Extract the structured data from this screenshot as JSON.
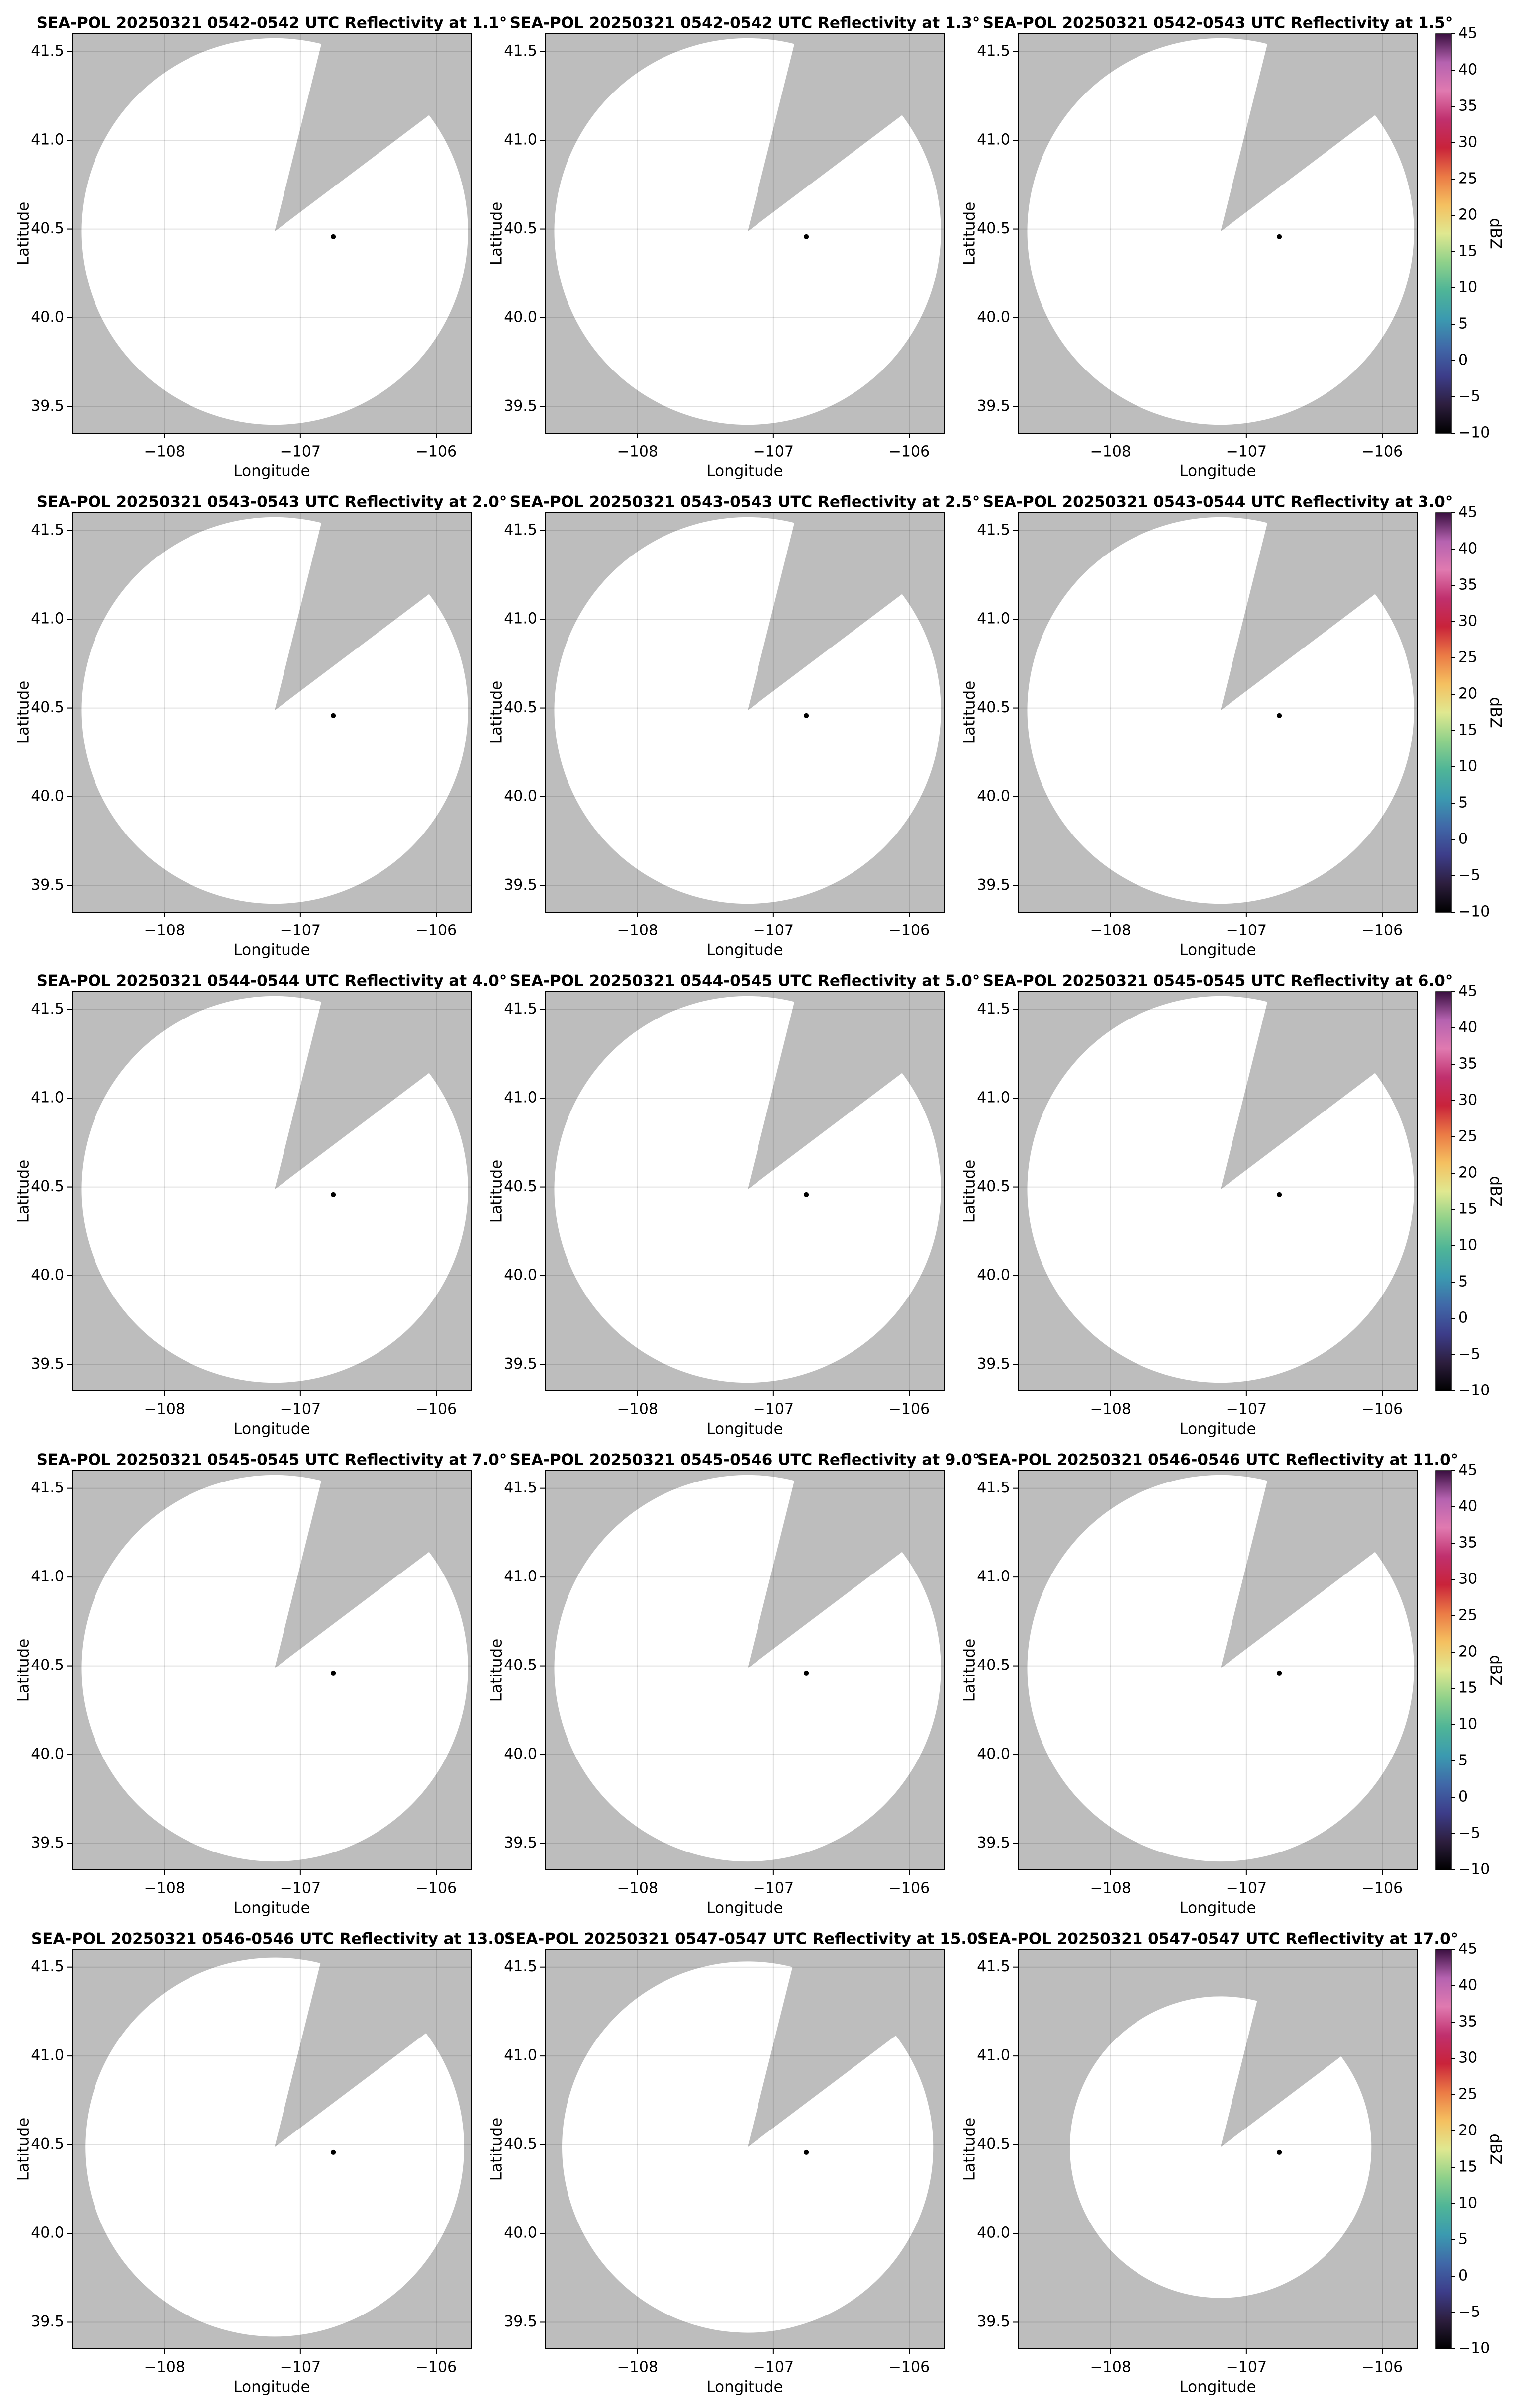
{
  "chart_data": [
    {
      "type": "radar",
      "title": "SEA-POL 20250321 0542-0542 UTC Reflectivity at 1.1°",
      "xlabel": "Longitude",
      "ylabel": "Latitude",
      "xlim": [
        -108.68,
        -105.74
      ],
      "ylim": [
        39.35,
        41.6
      ],
      "xticks": [
        {
          "value": -108,
          "label": "−108"
        },
        {
          "value": -107,
          "label": "−107"
        },
        {
          "value": -106,
          "label": "−106"
        }
      ],
      "yticks": [
        39.5,
        {
          "value": 40,
          "label": "40.0"
        },
        40.5,
        {
          "value": 41,
          "label": "41.0"
        },
        41.5
      ],
      "grid": true,
      "background_color": "#bdbdbd",
      "coverage_color": "#ffffff"
    },
    {
      "type": "radar",
      "title": "SEA-POL 20250321 0542-0542 UTC Reflectivity at 1.3°",
      "xlabel": "Longitude",
      "ylabel": "Latitude",
      "xlim": [
        -108.68,
        -105.74
      ],
      "ylim": [
        39.35,
        41.6
      ],
      "xticks": [
        {
          "value": -108,
          "label": "−108"
        },
        {
          "value": -107,
          "label": "−107"
        },
        {
          "value": -106,
          "label": "−106"
        }
      ],
      "yticks": [
        39.5,
        {
          "value": 40,
          "label": "40.0"
        },
        40.5,
        {
          "value": 41,
          "label": "41.0"
        },
        41.5
      ],
      "grid": true,
      "background_color": "#bdbdbd",
      "coverage_color": "#ffffff"
    },
    {
      "type": "radar",
      "title": "SEA-POL 20250321 0542-0543 UTC Reflectivity at 1.5°",
      "xlabel": "Longitude",
      "ylabel": "Latitude",
      "xlim": [
        -108.68,
        -105.74
      ],
      "ylim": [
        39.35,
        41.6
      ],
      "xticks": [
        {
          "value": -108,
          "label": "−108"
        },
        {
          "value": -107,
          "label": "−107"
        },
        {
          "value": -106,
          "label": "−106"
        }
      ],
      "yticks": [
        39.5,
        {
          "value": 40,
          "label": "40.0"
        },
        40.5,
        {
          "value": 41,
          "label": "41.0"
        },
        41.5
      ],
      "grid": true,
      "background_color": "#bdbdbd",
      "coverage_color": "#ffffff",
      "colorbar": {
        "label": "dBZ",
        "lim": [
          -10,
          45
        ],
        "ticks": [
          {
            "value": -10,
            "label": "−10"
          },
          {
            "value": -5,
            "label": "−5"
          },
          0,
          5,
          10,
          15,
          20,
          25,
          30,
          35,
          40,
          45
        ],
        "colors": [
          "#000000",
          "#2d1e3e",
          "#3d3d8a",
          "#4068a8",
          "#3b9ab0",
          "#4fb597",
          "#8fd18a",
          "#e0e890",
          "#f5c060",
          "#eb7a45",
          "#c9233a",
          "#c0306e",
          "#e07ab0",
          "#b562b0",
          "#3a0f40"
        ]
      }
    },
    {
      "type": "radar",
      "title": "SEA-POL 20250321 0543-0543 UTC Reflectivity at 2.0°",
      "xlabel": "Longitude",
      "ylabel": "Latitude",
      "xlim": [
        -108.68,
        -105.74
      ],
      "ylim": [
        39.35,
        41.6
      ],
      "xticks": [
        {
          "value": -108,
          "label": "−108"
        },
        {
          "value": -107,
          "label": "−107"
        },
        {
          "value": -106,
          "label": "−106"
        }
      ],
      "yticks": [
        39.5,
        {
          "value": 40,
          "label": "40.0"
        },
        40.5,
        {
          "value": 41,
          "label": "41.0"
        },
        41.5
      ],
      "grid": true,
      "background_color": "#bdbdbd",
      "coverage_color": "#ffffff"
    },
    {
      "type": "radar",
      "title": "SEA-POL 20250321 0543-0543 UTC Reflectivity at 2.5°",
      "xlabel": "Longitude",
      "ylabel": "Latitude",
      "xlim": [
        -108.68,
        -105.74
      ],
      "ylim": [
        39.35,
        41.6
      ],
      "xticks": [
        {
          "value": -108,
          "label": "−108"
        },
        {
          "value": -107,
          "label": "−107"
        },
        {
          "value": -106,
          "label": "−106"
        }
      ],
      "yticks": [
        39.5,
        {
          "value": 40,
          "label": "40.0"
        },
        40.5,
        {
          "value": 41,
          "label": "41.0"
        },
        41.5
      ],
      "grid": true,
      "background_color": "#bdbdbd",
      "coverage_color": "#ffffff"
    },
    {
      "type": "radar",
      "title": "SEA-POL 20250321 0543-0544 UTC Reflectivity at 3.0°",
      "xlabel": "Longitude",
      "ylabel": "Latitude",
      "xlim": [
        -108.68,
        -105.74
      ],
      "ylim": [
        39.35,
        41.6
      ],
      "xticks": [
        {
          "value": -108,
          "label": "−108"
        },
        {
          "value": -107,
          "label": "−107"
        },
        {
          "value": -106,
          "label": "−106"
        }
      ],
      "yticks": [
        39.5,
        {
          "value": 40,
          "label": "40.0"
        },
        40.5,
        {
          "value": 41,
          "label": "41.0"
        },
        41.5
      ],
      "grid": true,
      "background_color": "#bdbdbd",
      "coverage_color": "#ffffff",
      "colorbar": {
        "label": "dBZ",
        "lim": [
          -10,
          45
        ],
        "ticks": [
          {
            "value": -10,
            "label": "−10"
          },
          {
            "value": -5,
            "label": "−5"
          },
          0,
          5,
          10,
          15,
          20,
          25,
          30,
          35,
          40,
          45
        ],
        "colors": [
          "#000000",
          "#2d1e3e",
          "#3d3d8a",
          "#4068a8",
          "#3b9ab0",
          "#4fb597",
          "#8fd18a",
          "#e0e890",
          "#f5c060",
          "#eb7a45",
          "#c9233a",
          "#c0306e",
          "#e07ab0",
          "#b562b0",
          "#3a0f40"
        ]
      }
    },
    {
      "type": "radar",
      "title": "SEA-POL 20250321 0544-0544 UTC Reflectivity at 4.0°",
      "xlabel": "Longitude",
      "ylabel": "Latitude",
      "xlim": [
        -108.68,
        -105.74
      ],
      "ylim": [
        39.35,
        41.6
      ],
      "xticks": [
        {
          "value": -108,
          "label": "−108"
        },
        {
          "value": -107,
          "label": "−107"
        },
        {
          "value": -106,
          "label": "−106"
        }
      ],
      "yticks": [
        39.5,
        {
          "value": 40,
          "label": "40.0"
        },
        40.5,
        {
          "value": 41,
          "label": "41.0"
        },
        41.5
      ],
      "grid": true,
      "background_color": "#bdbdbd",
      "coverage_color": "#ffffff"
    },
    {
      "type": "radar",
      "title": "SEA-POL 20250321 0544-0545 UTC Reflectivity at 5.0°",
      "xlabel": "Longitude",
      "ylabel": "Latitude",
      "xlim": [
        -108.68,
        -105.74
      ],
      "ylim": [
        39.35,
        41.6
      ],
      "xticks": [
        {
          "value": -108,
          "label": "−108"
        },
        {
          "value": -107,
          "label": "−107"
        },
        {
          "value": -106,
          "label": "−106"
        }
      ],
      "yticks": [
        39.5,
        {
          "value": 40,
          "label": "40.0"
        },
        40.5,
        {
          "value": 41,
          "label": "41.0"
        },
        41.5
      ],
      "grid": true,
      "background_color": "#bdbdbd",
      "coverage_color": "#ffffff"
    },
    {
      "type": "radar",
      "title": "SEA-POL 20250321 0545-0545 UTC Reflectivity at 6.0°",
      "xlabel": "Longitude",
      "ylabel": "Latitude",
      "xlim": [
        -108.68,
        -105.74
      ],
      "ylim": [
        39.35,
        41.6
      ],
      "xticks": [
        {
          "value": -108,
          "label": "−108"
        },
        {
          "value": -107,
          "label": "−107"
        },
        {
          "value": -106,
          "label": "−106"
        }
      ],
      "yticks": [
        39.5,
        {
          "value": 40,
          "label": "40.0"
        },
        40.5,
        {
          "value": 41,
          "label": "41.0"
        },
        41.5
      ],
      "grid": true,
      "background_color": "#bdbdbd",
      "coverage_color": "#ffffff",
      "colorbar": {
        "label": "dBZ",
        "lim": [
          -10,
          45
        ],
        "ticks": [
          {
            "value": -10,
            "label": "−10"
          },
          {
            "value": -5,
            "label": "−5"
          },
          0,
          5,
          10,
          15,
          20,
          25,
          30,
          35,
          40,
          45
        ],
        "colors": [
          "#000000",
          "#2d1e3e",
          "#3d3d8a",
          "#4068a8",
          "#3b9ab0",
          "#4fb597",
          "#8fd18a",
          "#e0e890",
          "#f5c060",
          "#eb7a45",
          "#c9233a",
          "#c0306e",
          "#e07ab0",
          "#b562b0",
          "#3a0f40"
        ]
      }
    },
    {
      "type": "radar",
      "title": "SEA-POL 20250321 0545-0545 UTC Reflectivity at 7.0°",
      "xlabel": "Longitude",
      "ylabel": "Latitude",
      "xlim": [
        -108.68,
        -105.74
      ],
      "ylim": [
        39.35,
        41.6
      ],
      "xticks": [
        {
          "value": -108,
          "label": "−108"
        },
        {
          "value": -107,
          "label": "−107"
        },
        {
          "value": -106,
          "label": "−106"
        }
      ],
      "yticks": [
        39.5,
        {
          "value": 40,
          "label": "40.0"
        },
        40.5,
        {
          "value": 41,
          "label": "41.0"
        },
        41.5
      ],
      "grid": true,
      "background_color": "#bdbdbd",
      "coverage_color": "#ffffff"
    },
    {
      "type": "radar",
      "title": "SEA-POL 20250321 0545-0546 UTC Reflectivity at 9.0°",
      "xlabel": "Longitude",
      "ylabel": "Latitude",
      "xlim": [
        -108.68,
        -105.74
      ],
      "ylim": [
        39.35,
        41.6
      ],
      "xticks": [
        {
          "value": -108,
          "label": "−108"
        },
        {
          "value": -107,
          "label": "−107"
        },
        {
          "value": -106,
          "label": "−106"
        }
      ],
      "yticks": [
        39.5,
        {
          "value": 40,
          "label": "40.0"
        },
        40.5,
        {
          "value": 41,
          "label": "41.0"
        },
        41.5
      ],
      "grid": true,
      "background_color": "#bdbdbd",
      "coverage_color": "#ffffff"
    },
    {
      "type": "radar",
      "title": "SEA-POL 20250321 0546-0546 UTC Reflectivity at 11.0°",
      "xlabel": "Longitude",
      "ylabel": "Latitude",
      "xlim": [
        -108.68,
        -105.74
      ],
      "ylim": [
        39.35,
        41.6
      ],
      "xticks": [
        {
          "value": -108,
          "label": "−108"
        },
        {
          "value": -107,
          "label": "−107"
        },
        {
          "value": -106,
          "label": "−106"
        }
      ],
      "yticks": [
        39.5,
        {
          "value": 40,
          "label": "40.0"
        },
        40.5,
        {
          "value": 41,
          "label": "41.0"
        },
        41.5
      ],
      "grid": true,
      "background_color": "#bdbdbd",
      "coverage_color": "#ffffff",
      "colorbar": {
        "label": "dBZ",
        "lim": [
          -10,
          45
        ],
        "ticks": [
          {
            "value": -10,
            "label": "−10"
          },
          {
            "value": -5,
            "label": "−5"
          },
          0,
          5,
          10,
          15,
          20,
          25,
          30,
          35,
          40,
          45
        ],
        "colors": [
          "#000000",
          "#2d1e3e",
          "#3d3d8a",
          "#4068a8",
          "#3b9ab0",
          "#4fb597",
          "#8fd18a",
          "#e0e890",
          "#f5c060",
          "#eb7a45",
          "#c9233a",
          "#c0306e",
          "#e07ab0",
          "#b562b0",
          "#3a0f40"
        ]
      }
    },
    {
      "type": "radar",
      "title": "SEA-POL 20250321 0546-0546 UTC Reflectivity at 13.0°",
      "xlabel": "Longitude",
      "ylabel": "Latitude",
      "xlim": [
        -108.68,
        -105.74
      ],
      "ylim": [
        39.35,
        41.6
      ],
      "xticks": [
        {
          "value": -108,
          "label": "−108"
        },
        {
          "value": -107,
          "label": "−107"
        },
        {
          "value": -106,
          "label": "−106"
        }
      ],
      "yticks": [
        39.5,
        {
          "value": 40,
          "label": "40.0"
        },
        40.5,
        {
          "value": 41,
          "label": "41.0"
        },
        41.5
      ],
      "grid": true,
      "background_color": "#bdbdbd",
      "coverage_color": "#ffffff"
    },
    {
      "type": "radar",
      "title": "SEA-POL 20250321 0547-0547 UTC Reflectivity at 15.0°",
      "xlabel": "Longitude",
      "ylabel": "Latitude",
      "xlim": [
        -108.68,
        -105.74
      ],
      "ylim": [
        39.35,
        41.6
      ],
      "xticks": [
        {
          "value": -108,
          "label": "−108"
        },
        {
          "value": -107,
          "label": "−107"
        },
        {
          "value": -106,
          "label": "−106"
        }
      ],
      "yticks": [
        39.5,
        {
          "value": 40,
          "label": "40.0"
        },
        40.5,
        {
          "value": 41,
          "label": "41.0"
        },
        41.5
      ],
      "grid": true,
      "background_color": "#bdbdbd",
      "coverage_color": "#ffffff"
    },
    {
      "type": "radar",
      "title": "SEA-POL 20250321 0547-0547 UTC Reflectivity at 17.0°",
      "xlabel": "Longitude",
      "ylabel": "Latitude",
      "xlim": [
        -108.68,
        -105.74
      ],
      "ylim": [
        39.35,
        41.6
      ],
      "xticks": [
        {
          "value": -108,
          "label": "−108"
        },
        {
          "value": -107,
          "label": "−107"
        },
        {
          "value": -106,
          "label": "−106"
        }
      ],
      "yticks": [
        39.5,
        {
          "value": 40,
          "label": "40.0"
        },
        40.5,
        {
          "value": 41,
          "label": "41.0"
        },
        41.5
      ],
      "grid": true,
      "background_color": "#bdbdbd",
      "coverage_color": "#ffffff",
      "colorbar": {
        "label": "dBZ",
        "lim": [
          -10,
          45
        ],
        "ticks": [
          {
            "value": -10,
            "label": "−10"
          },
          {
            "value": -5,
            "label": "−5"
          },
          0,
          5,
          10,
          15,
          20,
          25,
          30,
          35,
          40,
          45
        ],
        "colors": [
          "#000000",
          "#2d1e3e",
          "#3d3d8a",
          "#4068a8",
          "#3b9ab0",
          "#4fb597",
          "#8fd18a",
          "#e0e890",
          "#f5c060",
          "#eb7a45",
          "#c9233a",
          "#c0306e",
          "#e07ab0",
          "#b562b0",
          "#3a0f40"
        ]
      }
    }
  ]
}
